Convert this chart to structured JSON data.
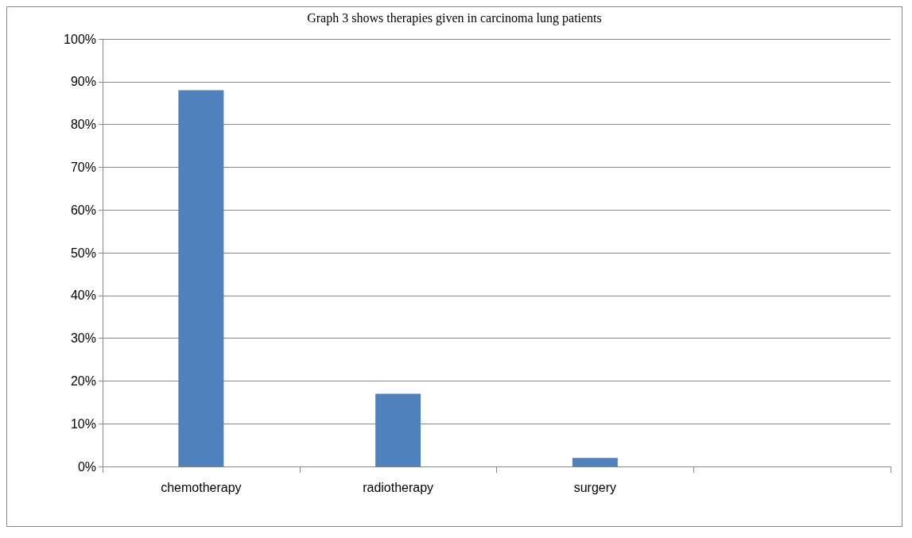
{
  "chart_data": {
    "type": "bar",
    "title": "Graph 3 shows therapies given in carcinoma lung patients",
    "categories": [
      "chemotherapy",
      "radiotherapy",
      "surgery",
      null
    ],
    "values": [
      88,
      17,
      2,
      null
    ],
    "color": "#4f81bd",
    "ylim": [
      0,
      100
    ],
    "yticks": [
      {
        "value": 0,
        "label": "0%"
      },
      {
        "value": 10,
        "label": "10%"
      },
      {
        "value": 20,
        "label": "20%"
      },
      {
        "value": 30,
        "label": "30%"
      },
      {
        "value": 40,
        "label": "40%"
      },
      {
        "value": 50,
        "label": "50%"
      },
      {
        "value": 60,
        "label": "60%"
      },
      {
        "value": 70,
        "label": "70%"
      },
      {
        "value": 80,
        "label": "80%"
      },
      {
        "value": 90,
        "label": "90%"
      },
      {
        "value": 100,
        "label": "100%"
      }
    ],
    "grid": "y"
  }
}
